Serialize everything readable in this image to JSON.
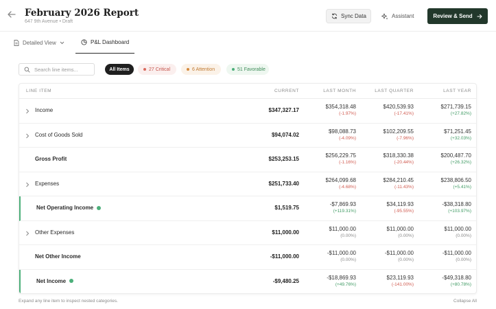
{
  "header": {
    "title": "February 2026 Report",
    "subtitle": "647 9th Avenue • Draft",
    "sync_label": "Sync Data",
    "assistant_label": "Assistant",
    "review_label": "Review & Send"
  },
  "tabs": [
    {
      "label": "Detailed View",
      "icon": "document-icon"
    },
    {
      "label": "P&L Dashboard",
      "icon": "pie-chart-icon",
      "active": true
    }
  ],
  "filters": {
    "search_placeholder": "Search line items...",
    "all_label": "All Items",
    "critical_label": "27 Critical",
    "attention_label": "6 Attention",
    "favorable_label": "51 Favorable"
  },
  "colors": {
    "primary": "#22382b",
    "critical": "#c4534a",
    "attention": "#c07a32",
    "favorable": "#3f8c5a",
    "accent_bar": "#4caf7a"
  },
  "table": {
    "columns": [
      "LINE ITEM",
      "CURRENT",
      "LAST MONTH",
      "LAST QUARTER",
      "LAST YEAR"
    ],
    "rows": [
      {
        "label": "Income",
        "expandable": true,
        "current": "$347,327.17",
        "lm": "$354,318.48",
        "lm_pct": "(-1.97%)",
        "lq": "$420,539.93",
        "lq_pct": "(-17.41%)",
        "ly": "$271,739.15",
        "ly_pct": "(+27.82%)"
      },
      {
        "label": "Cost of Goods Sold",
        "expandable": true,
        "current": "$94,074.02",
        "lm": "$98,088.73",
        "lm_pct": "(-4.09%)",
        "lq": "$102,209.55",
        "lq_pct": "(-7.96%)",
        "ly": "$71,251.45",
        "ly_pct": "(+32.03%)"
      },
      {
        "label": "Gross Profit",
        "bold": true,
        "current": "$253,253.15",
        "lm": "$256,229.75",
        "lm_pct": "(-1.16%)",
        "lq": "$318,330.38",
        "lq_pct": "(-20.44%)",
        "ly": "$200,487.70",
        "ly_pct": "(+26.32%)"
      },
      {
        "label": "Expenses",
        "expandable": true,
        "current": "$251,733.40",
        "lm": "$264,099.68",
        "lm_pct": "(-4.68%)",
        "lq": "$284,210.45",
        "lq_pct": "(-11.43%)",
        "ly": "$238,806.50",
        "ly_pct": "(+5.41%)"
      },
      {
        "label": "Net Operating Income",
        "bold": true,
        "accent": true,
        "current": "$1,519.75",
        "lm": "-$7,869.93",
        "lm_pct": "(+119.31%)",
        "lq": "$34,119.93",
        "lq_pct": "(-95.55%)",
        "ly": "-$38,318.80",
        "ly_pct": "(+103.97%)"
      },
      {
        "label": "Other Expenses",
        "expandable": true,
        "current": "$11,000.00",
        "lm": "$11,000.00",
        "lm_pct": "(0.00%)",
        "lq": "$11,000.00",
        "lq_pct": "(0.00%)",
        "ly": "$11,000.00",
        "ly_pct": "(0.00%)"
      },
      {
        "label": "Net Other Income",
        "bold": true,
        "current": "-$11,000.00",
        "lm": "-$11,000.00",
        "lm_pct": "(0.00%)",
        "lq": "-$11,000.00",
        "lq_pct": "(0.00%)",
        "ly": "-$11,000.00",
        "ly_pct": "(0.00%)"
      },
      {
        "label": "Net Income",
        "bold": true,
        "accent": true,
        "current": "-$9,480.25",
        "lm": "-$18,869.93",
        "lm_pct": "(+49.76%)",
        "lq": "$23,119.93",
        "lq_pct": "(-141.00%)",
        "ly": "-$49,318.80",
        "ly_pct": "(+80.78%)"
      }
    ]
  },
  "footer": {
    "hint": "Expand any line item to inspect nested categories.",
    "collapse_label": "Collapse All"
  }
}
